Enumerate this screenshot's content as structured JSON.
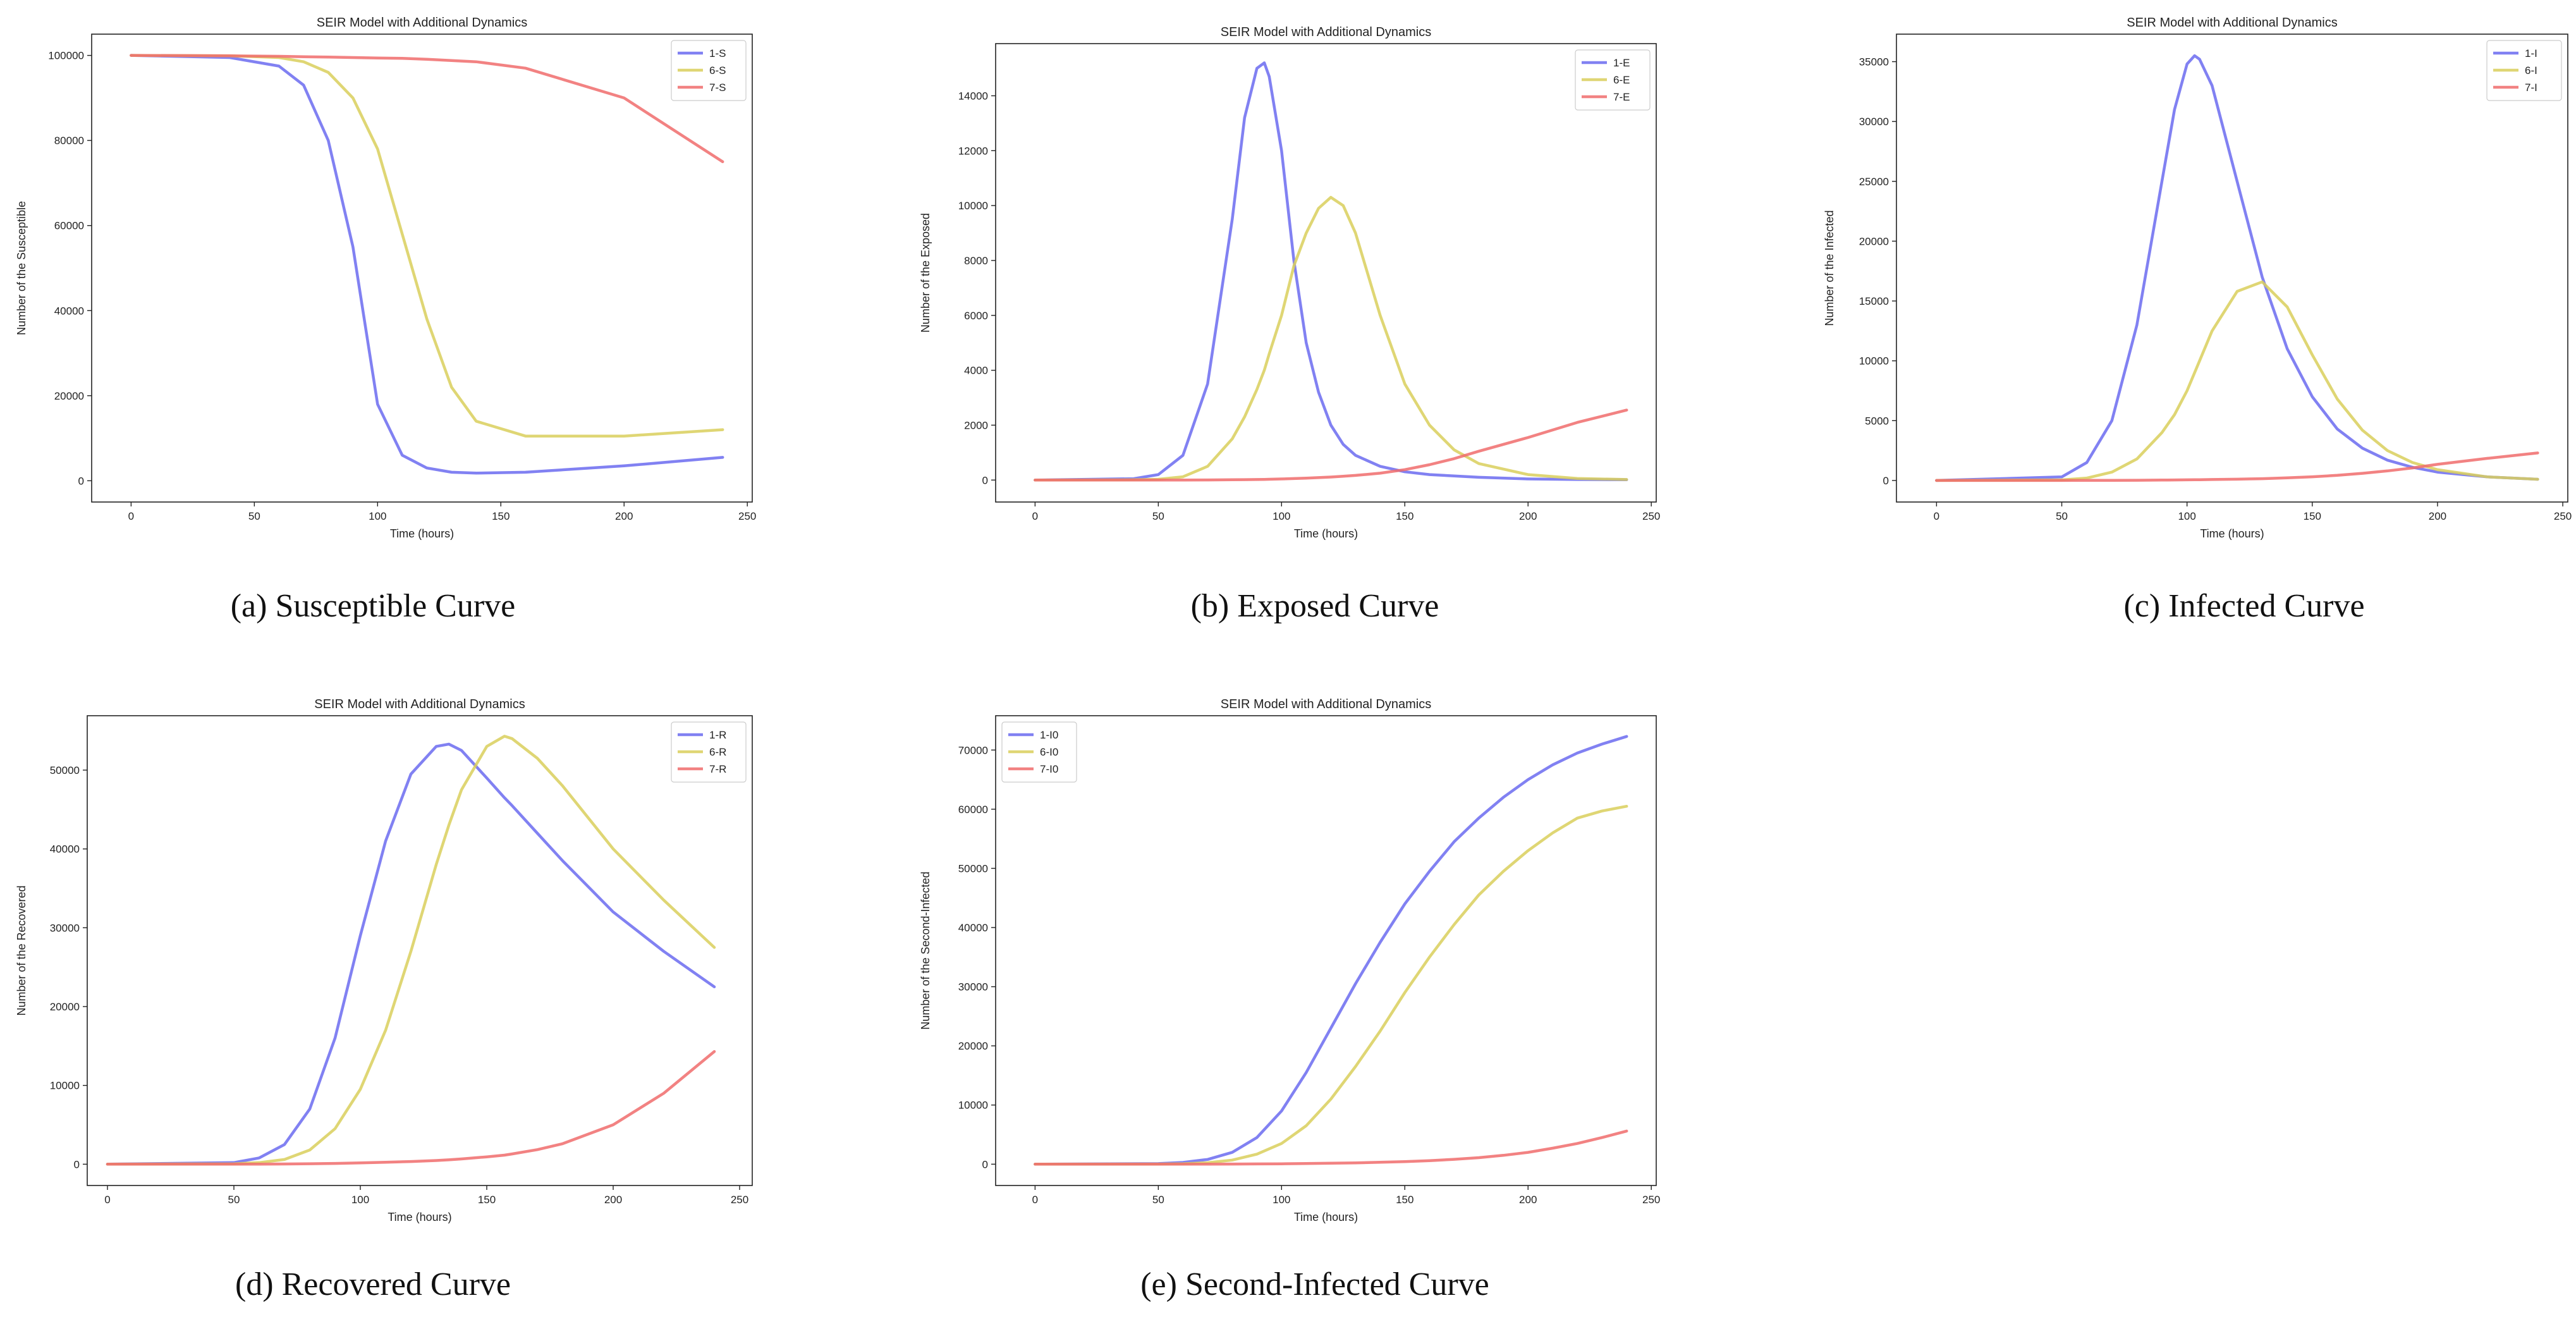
{
  "figure": {
    "subplots": [
      "a",
      "b",
      "c",
      "d",
      "e"
    ]
  },
  "chart_data": [
    {
      "id": "a",
      "type": "line",
      "title": "SEIR Model with Additional Dynamics",
      "xlabel": "Time (hours)",
      "ylabel": "Number of the Susceptible",
      "caption": "(a) Susceptible Curve",
      "xlim": [
        -16,
        252
      ],
      "ylim": [
        -5000,
        105000
      ],
      "xticks": [
        0,
        50,
        100,
        150,
        200,
        250
      ],
      "yticks": [
        0,
        20000,
        40000,
        60000,
        80000,
        100000
      ],
      "legend_loc": "top-right",
      "grid": false,
      "x": [
        0,
        40,
        60,
        70,
        80,
        90,
        100,
        110,
        120,
        130,
        140,
        160,
        200,
        240
      ],
      "series": [
        {
          "name": "1-S",
          "color": "#6b6bf0",
          "values": [
            100000,
            99500,
            97500,
            93000,
            80000,
            55000,
            18000,
            6000,
            3000,
            2000,
            1800,
            2000,
            3500,
            5500
          ]
        },
        {
          "name": "6-S",
          "color": "#d9cf5c",
          "values": [
            100000,
            99900,
            99500,
            98500,
            96000,
            90000,
            78000,
            58000,
            38000,
            22000,
            14000,
            10500,
            10500,
            12000
          ]
        },
        {
          "name": "7-S",
          "color": "#f06c6c",
          "values": [
            100000,
            99900,
            99800,
            99700,
            99600,
            99500,
            99400,
            99300,
            99100,
            98800,
            98500,
            97000,
            90000,
            75000
          ]
        }
      ]
    },
    {
      "id": "b",
      "type": "line",
      "title": "SEIR Model with Additional Dynamics",
      "xlabel": "Time (hours)",
      "ylabel": "Number of the Exposed",
      "caption": "(b) Exposed Curve",
      "xlim": [
        -16,
        252
      ],
      "ylim": [
        -800,
        15900
      ],
      "xticks": [
        0,
        50,
        100,
        150,
        200,
        250
      ],
      "yticks": [
        0,
        2000,
        4000,
        6000,
        8000,
        10000,
        12000,
        14000
      ],
      "legend_loc": "top-right",
      "grid": false,
      "x": [
        0,
        40,
        50,
        60,
        70,
        80,
        85,
        90,
        93,
        95,
        100,
        105,
        110,
        115,
        120,
        125,
        130,
        140,
        150,
        160,
        170,
        180,
        200,
        220,
        240
      ],
      "series": [
        {
          "name": "1-E",
          "color": "#6b6bf0",
          "values": [
            0,
            50,
            200,
            900,
            3500,
            9500,
            13200,
            15000,
            15200,
            14700,
            12000,
            8000,
            5000,
            3200,
            2000,
            1300,
            900,
            500,
            300,
            200,
            150,
            100,
            40,
            20,
            10
          ]
        },
        {
          "name": "6-E",
          "color": "#d9cf5c",
          "values": [
            0,
            10,
            30,
            120,
            500,
            1500,
            2300,
            3300,
            4000,
            4600,
            6000,
            7800,
            9000,
            9900,
            10300,
            10000,
            9000,
            6000,
            3500,
            2000,
            1100,
            600,
            200,
            60,
            20
          ]
        },
        {
          "name": "7-E",
          "color": "#f06c6c",
          "values": [
            0,
            0,
            0,
            0,
            5,
            10,
            15,
            20,
            25,
            30,
            40,
            55,
            70,
            90,
            110,
            140,
            170,
            250,
            380,
            560,
            780,
            1050,
            1550,
            2100,
            2550
          ]
        }
      ]
    },
    {
      "id": "c",
      "type": "line",
      "title": "SEIR Model with Additional Dynamics",
      "xlabel": "Time (hours)",
      "ylabel": "Number of the Infected",
      "caption": "(c) Infected Curve",
      "xlim": [
        -16,
        252
      ],
      "ylim": [
        -1800,
        37300
      ],
      "xticks": [
        0,
        50,
        100,
        150,
        200,
        250
      ],
      "yticks": [
        0,
        5000,
        10000,
        15000,
        20000,
        25000,
        30000,
        35000
      ],
      "legend_loc": "top-right",
      "grid": false,
      "x": [
        0,
        50,
        60,
        70,
        80,
        90,
        95,
        100,
        103,
        105,
        110,
        120,
        130,
        140,
        150,
        160,
        170,
        180,
        190,
        200,
        220,
        240
      ],
      "series": [
        {
          "name": "1-I",
          "color": "#6b6bf0",
          "values": [
            0,
            300,
            1500,
            5000,
            13000,
            25000,
            31000,
            34800,
            35500,
            35200,
            33000,
            25000,
            17000,
            11000,
            7000,
            4300,
            2700,
            1700,
            1100,
            700,
            300,
            100
          ]
        },
        {
          "name": "6-I",
          "color": "#d9cf5c",
          "values": [
            0,
            50,
            200,
            700,
            1800,
            4000,
            5500,
            7500,
            9000,
            10000,
            12500,
            15800,
            16600,
            14500,
            10500,
            6800,
            4200,
            2500,
            1500,
            900,
            300,
            100
          ]
        },
        {
          "name": "7-I",
          "color": "#f06c6c",
          "values": [
            0,
            0,
            5,
            10,
            20,
            35,
            45,
            55,
            60,
            65,
            80,
            110,
            150,
            220,
            310,
            430,
            600,
            800,
            1050,
            1350,
            1850,
            2300
          ]
        }
      ]
    },
    {
      "id": "d",
      "type": "line",
      "title": "SEIR Model with Additional Dynamics",
      "xlabel": "Time (hours)",
      "ylabel": "Number of the Recovered",
      "caption": "(d) Recovered Curve",
      "xlim": [
        -8,
        255
      ],
      "ylim": [
        -2700,
        56900
      ],
      "xticks": [
        0,
        50,
        100,
        150,
        200,
        250
      ],
      "yticks": [
        0,
        10000,
        20000,
        30000,
        40000,
        50000
      ],
      "legend_loc": "top-right",
      "grid": false,
      "x": [
        0,
        50,
        60,
        70,
        80,
        90,
        100,
        110,
        120,
        130,
        135,
        140,
        150,
        157,
        160,
        170,
        180,
        200,
        220,
        240
      ],
      "series": [
        {
          "name": "1-R",
          "color": "#6b6bf0",
          "values": [
            0,
            200,
            800,
            2500,
            7000,
            16000,
            29000,
            41000,
            49500,
            53000,
            53300,
            52500,
            49000,
            46500,
            45500,
            42000,
            38500,
            32000,
            27000,
            22500
          ]
        },
        {
          "name": "6-R",
          "color": "#d9cf5c",
          "values": [
            0,
            50,
            200,
            600,
            1800,
            4500,
            9500,
            17000,
            27000,
            38000,
            43000,
            47500,
            53000,
            54300,
            54000,
            51500,
            48000,
            40000,
            33500,
            27500
          ]
        },
        {
          "name": "7-R",
          "color": "#f06c6c",
          "values": [
            0,
            0,
            10,
            30,
            60,
            100,
            160,
            240,
            340,
            470,
            560,
            670,
            930,
            1150,
            1300,
            1850,
            2600,
            5000,
            9000,
            14300
          ]
        }
      ]
    },
    {
      "id": "e",
      "type": "line",
      "title": "SEIR Model with Additional Dynamics",
      "xlabel": "Time (hours)",
      "ylabel": "Number of the Second-Infected",
      "caption": "(e) Second-Infected Curve",
      "xlim": [
        -16,
        252
      ],
      "ylim": [
        -3600,
        75800
      ],
      "xticks": [
        0,
        50,
        100,
        150,
        200,
        250
      ],
      "yticks": [
        0,
        10000,
        20000,
        30000,
        40000,
        50000,
        60000,
        70000
      ],
      "legend_loc": "top-left",
      "grid": false,
      "x": [
        0,
        50,
        60,
        70,
        80,
        90,
        100,
        110,
        120,
        130,
        140,
        150,
        160,
        170,
        180,
        190,
        200,
        210,
        220,
        230,
        240
      ],
      "series": [
        {
          "name": "1-I0",
          "color": "#6b6bf0",
          "values": [
            0,
            100,
            300,
            800,
            2000,
            4500,
            9000,
            15500,
            23000,
            30500,
            37500,
            44000,
            49500,
            54500,
            58500,
            62000,
            65000,
            67500,
            69500,
            71000,
            72300
          ]
        },
        {
          "name": "6-I0",
          "color": "#d9cf5c",
          "values": [
            0,
            20,
            80,
            250,
            700,
            1700,
            3500,
            6500,
            11000,
            16500,
            22500,
            29000,
            35000,
            40500,
            45500,
            49500,
            53000,
            56000,
            58500,
            59700,
            60500
          ]
        },
        {
          "name": "7-I0",
          "color": "#f06c6c",
          "values": [
            0,
            0,
            0,
            10,
            20,
            40,
            70,
            110,
            160,
            230,
            320,
            440,
            600,
            820,
            1100,
            1500,
            2000,
            2700,
            3500,
            4500,
            5600
          ]
        }
      ]
    }
  ]
}
